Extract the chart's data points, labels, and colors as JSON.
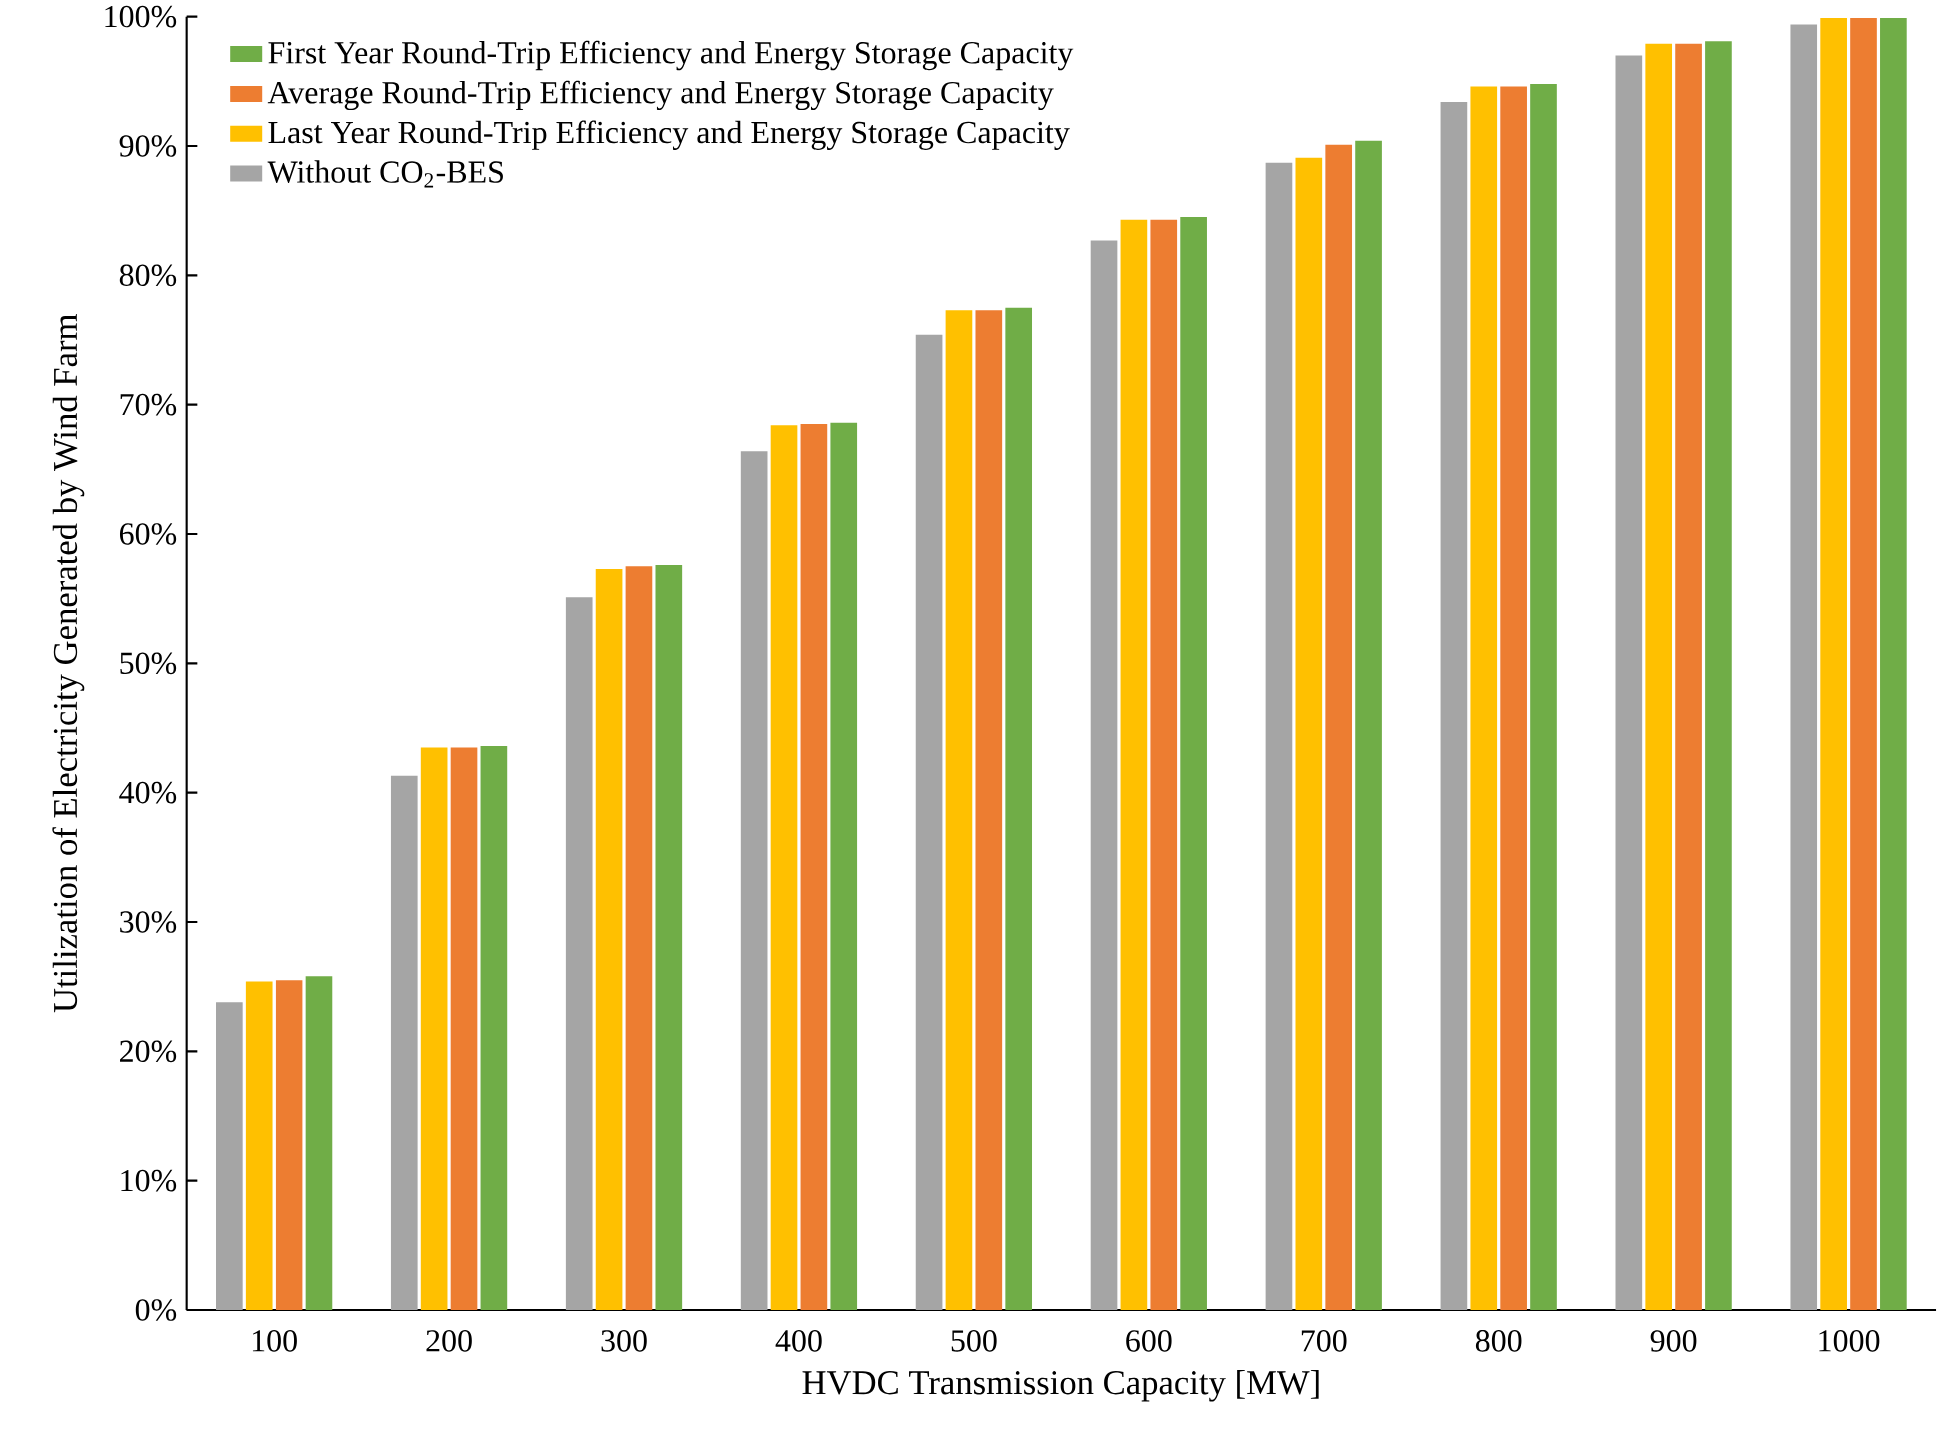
{
  "chart_data": {
    "type": "bar",
    "xlabel": "HVDC Transmission Capacity [MW]",
    "ylabel": "Utilization of Electricity Generated by Wind Farm",
    "categories": [
      "100",
      "200",
      "300",
      "400",
      "500",
      "600",
      "700",
      "800",
      "900",
      "1000"
    ],
    "series": [
      {
        "name": "Without CO$_{2}$-BES",
        "color": "#a5a5a5",
        "values": [
          23.8,
          41.3,
          55.1,
          66.4,
          75.4,
          82.7,
          88.7,
          93.4,
          97.0,
          99.4
        ]
      },
      {
        "name": "Last Year Round-Trip Efficiency and Energy Storage Capacity",
        "color": "#ffc000",
        "values": [
          25.4,
          43.5,
          57.3,
          68.4,
          77.3,
          84.3,
          89.1,
          94.6,
          97.9,
          99.9
        ]
      },
      {
        "name": "Average Round-Trip Efficiency and Energy Storage Capacity",
        "color": "#ed7d31",
        "values": [
          25.5,
          43.5,
          57.5,
          68.5,
          77.3,
          84.3,
          90.1,
          94.6,
          97.9,
          99.9
        ]
      },
      {
        "name": "First Year Round-Trip Efficiency and Energy Storage Capacity",
        "color": "#70ad47",
        "values": [
          25.8,
          43.6,
          57.6,
          68.6,
          77.5,
          84.5,
          90.4,
          94.8,
          98.1,
          99.9
        ]
      }
    ],
    "ylim": [
      0,
      100
    ],
    "yticks": [
      {
        "value": 0,
        "label": "0%"
      },
      {
        "value": 10,
        "label": "10%"
      },
      {
        "value": 20,
        "label": "20%"
      },
      {
        "value": 30,
        "label": "30%"
      },
      {
        "value": 40,
        "label": "40%"
      },
      {
        "value": 50,
        "label": "50%"
      },
      {
        "value": 60,
        "label": "60%"
      },
      {
        "value": 70,
        "label": "70%"
      },
      {
        "value": 80,
        "label": "80%"
      },
      {
        "value": 90,
        "label": "90%"
      },
      {
        "value": 100,
        "label": "100%"
      }
    ],
    "grid": false,
    "legend": "top left"
  }
}
